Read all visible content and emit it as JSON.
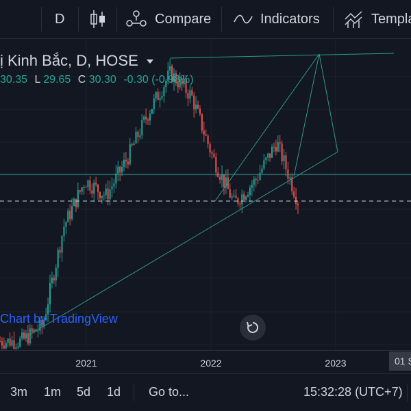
{
  "toolbar": {
    "interval": "D",
    "compare": "Compare",
    "indicators": "Indicators",
    "templates": "Templa"
  },
  "legend": {
    "title": "ị Kinh Bắc, D, HOSE",
    "o_val": "30.35",
    "l_lbl": "L",
    "l_val": "29.65",
    "c_lbl": "C",
    "c_val": "30.30",
    "change": "-0.30 (-0.98%)"
  },
  "watermark": "Chart by TradingView",
  "xaxis": {
    "labels": [
      "2021",
      "2022",
      "2023"
    ],
    "cursor_label": "01 S"
  },
  "bottombar": {
    "ranges": [
      "3m",
      "1m",
      "5d",
      "1d"
    ],
    "goto": "Go to...",
    "clock": "15:32:28 (UTC+7)"
  },
  "colors": {
    "background": "#131722",
    "up": "#26a69a",
    "down": "#ef5350",
    "grid": "#2a2e39",
    "drawing": "#2e9a8e"
  },
  "chart_data": {
    "type": "candlestick",
    "x": [
      "2020-05",
      "2020-08",
      "2020-11",
      "2021-01",
      "2021-03",
      "2021-06",
      "2021-09",
      "2021-11",
      "2022-01",
      "2022-02",
      "2022-04",
      "2022-05",
      "2022-06",
      "2022-08",
      "2022-09"
    ],
    "close": [
      12,
      12,
      14,
      27,
      33,
      31,
      36,
      42,
      47,
      44,
      36,
      30,
      33,
      38,
      30.3
    ],
    "xlabels": [
      "2021",
      "2022",
      "2023"
    ]
  }
}
